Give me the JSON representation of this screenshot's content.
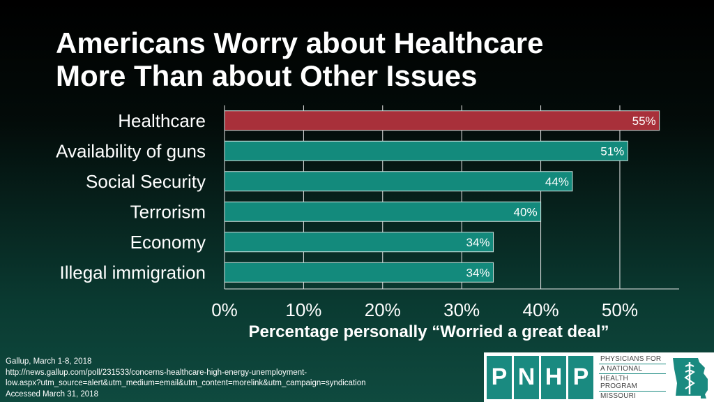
{
  "title_lines": [
    "Americans Worry about Healthcare",
    "More Than about Other Issues"
  ],
  "chart_data": {
    "type": "bar",
    "orientation": "horizontal",
    "categories": [
      "Healthcare",
      "Availability of guns",
      "Social Security",
      "Terrorism",
      "Economy",
      "Illegal immigration"
    ],
    "values": [
      55,
      51,
      44,
      40,
      34,
      34
    ],
    "value_labels": [
      "55%",
      "51%",
      "44%",
      "40%",
      "34%",
      "34%"
    ],
    "highlight_index": 0,
    "xlim": [
      0,
      57.5
    ],
    "xticks": [
      0,
      10,
      20,
      30,
      40,
      50
    ],
    "xtick_labels": [
      "0%",
      "10%",
      "20%",
      "30%",
      "40%",
      "50%"
    ],
    "xlabel": "Percentage personally “Worried a great deal”",
    "grid": true,
    "colors": {
      "highlight": "#a8303a",
      "bar": "#138a7c",
      "bar_border": "#cfe3df",
      "grid": "#e8e8e8"
    }
  },
  "source": {
    "lines": [
      "Gallup, March 1-8, 2018",
      "http://news.gallup.com/poll/231533/concerns-healthcare-high-energy-unemployment-",
      "low.aspx?utm_source=alert&utm_medium=email&utm_content=morelink&utm_campaign=syndication",
      "Accessed March 31, 2018"
    ]
  },
  "logo": {
    "letters": [
      "P",
      "N",
      "H",
      "P"
    ],
    "lines": [
      "PHYSICIANS FOR",
      "A NATIONAL",
      "HEALTH PROGRAM",
      "MISSOURI"
    ],
    "icon": "missouri-caduceus-icon"
  }
}
